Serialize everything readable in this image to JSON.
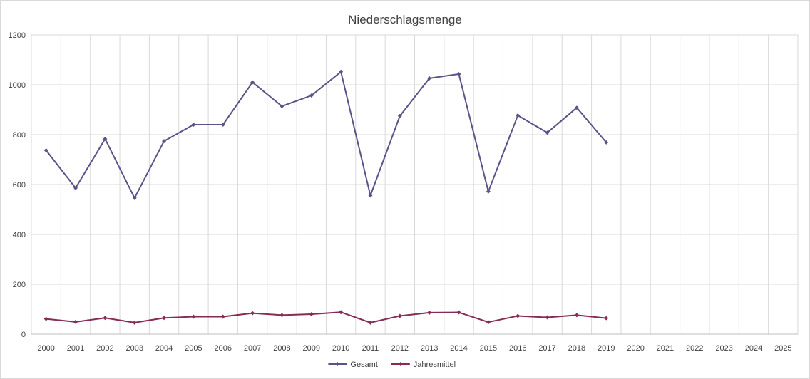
{
  "chart_data": {
    "type": "line",
    "title": "Niederschlagsmenge",
    "xlabel": "",
    "ylabel": "",
    "categories": [
      "2000",
      "2001",
      "2002",
      "2003",
      "2004",
      "2005",
      "2006",
      "2007",
      "2008",
      "2009",
      "2010",
      "2011",
      "2012",
      "2013",
      "2014",
      "2015",
      "2016",
      "2017",
      "2018",
      "2019",
      "2020",
      "2021",
      "2022",
      "2023",
      "2024",
      "2025"
    ],
    "ylim": [
      0,
      1200
    ],
    "yticks": [
      0,
      200,
      400,
      600,
      800,
      1000,
      1200
    ],
    "grid": true,
    "legend_position": "bottom",
    "series": [
      {
        "name": "Gesamt",
        "color": "#5b5388",
        "values": [
          737,
          586,
          783,
          546,
          774,
          840,
          840,
          1010,
          914,
          957,
          1052,
          556,
          875,
          1026,
          1043,
          572,
          877,
          808,
          908,
          769,
          null,
          null,
          null,
          null,
          null,
          null
        ]
      },
      {
        "name": "Jahresmittel",
        "color": "#862a56",
        "values": [
          61,
          49,
          65,
          46,
          65,
          70,
          70,
          84,
          76,
          80,
          88,
          46,
          73,
          86,
          87,
          48,
          73,
          67,
          76,
          64,
          null,
          null,
          null,
          null,
          null,
          null
        ]
      }
    ]
  }
}
